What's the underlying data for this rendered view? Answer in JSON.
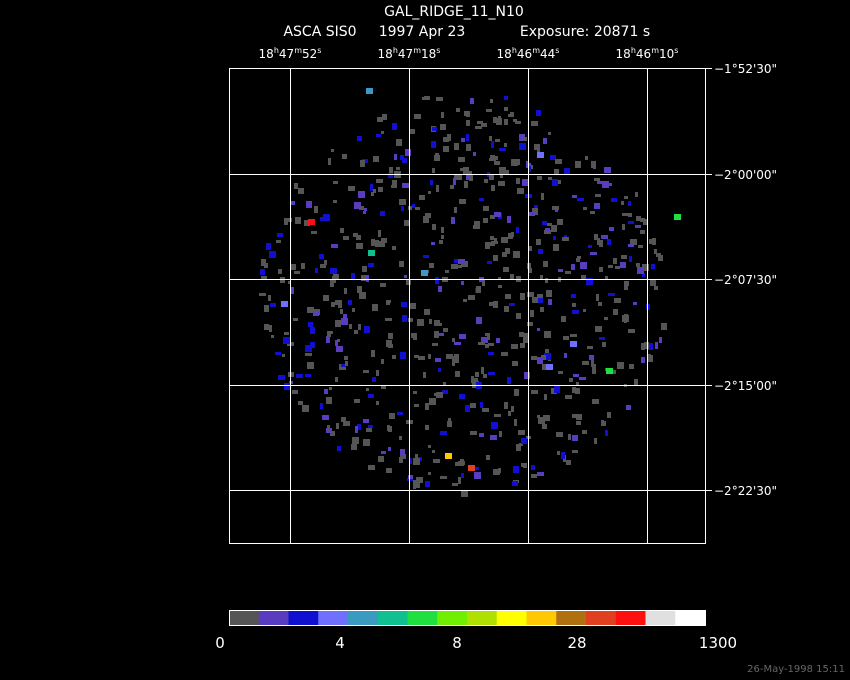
{
  "header": {
    "title": "GAL_RIDGE_11_N10",
    "instrument": "ASCA SIS0",
    "date": "1997 Apr 23",
    "exposure": "Exposure: 20871 s"
  },
  "ra_labels": [
    [
      "18",
      "h",
      "47",
      "m",
      "52",
      "s"
    ],
    [
      "18",
      "h",
      "47",
      "m",
      "18",
      "s"
    ],
    [
      "18",
      "h",
      "46",
      "m",
      "44",
      "s"
    ],
    [
      "18",
      "h",
      "46",
      "m",
      "10",
      "s"
    ]
  ],
  "dec_labels": [
    "−1°52'30\"",
    "−2°00'00\"",
    "−2°07'30\"",
    "−2°15'00\"",
    "−2°22'30\""
  ],
  "colorbar": {
    "colors": [
      "#555555",
      "#5a3cc0",
      "#1010d0",
      "#7070ff",
      "#3a9ac0",
      "#10c090",
      "#20e040",
      "#70f000",
      "#b0e000",
      "#ffff00",
      "#ffc800",
      "#b07010",
      "#e04020",
      "#ff1010",
      "#e0e0e0",
      "#ffffff"
    ],
    "labels": [
      "0",
      "4",
      "8",
      "28",
      "1300"
    ]
  },
  "footer": {
    "timestamp": "26-May-1998 15:11"
  }
}
